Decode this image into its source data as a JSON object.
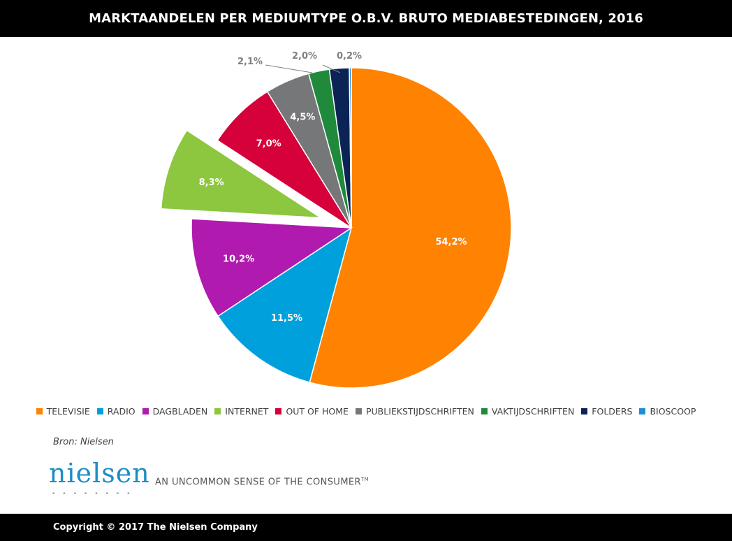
{
  "title": "MARKTAANDELEN PER MEDIUMTYPE O.B.V. BRUTO MEDIABESTEDINGEN, 2016",
  "chart_data": {
    "type": "pie",
    "title": "MARKTAANDELEN PER MEDIUMTYPE O.B.V. BRUTO MEDIABESTEDINGEN, 2016",
    "unit": "%",
    "legend_position": "bottom",
    "exploded": "INTERNET",
    "slices": [
      {
        "label": "TELEVISIE",
        "value": 54.2,
        "value_label": "54,2%",
        "color": "#FF8200"
      },
      {
        "label": "RADIO",
        "value": 11.5,
        "value_label": "11,5%",
        "color": "#00A0DC"
      },
      {
        "label": "DAGBLADEN",
        "value": 10.2,
        "value_label": "10,2%",
        "color": "#B01AAE"
      },
      {
        "label": "INTERNET",
        "value": 8.3,
        "value_label": "8,3%",
        "color": "#8DC63F"
      },
      {
        "label": "OUT OF HOME",
        "value": 7.0,
        "value_label": "7,0%",
        "color": "#D6003A"
      },
      {
        "label": "PUBLIEKSTIJDSCHRIFTEN",
        "value": 4.5,
        "value_label": "4,5%",
        "color": "#767779"
      },
      {
        "label": "VAKTIJDSCHRIFTEN",
        "value": 2.1,
        "value_label": "2,1%",
        "color": "#1F8A3C"
      },
      {
        "label": "FOLDERS",
        "value": 2.0,
        "value_label": "2,0%",
        "color": "#0C2356"
      },
      {
        "label": "BIOSCOOP",
        "value": 0.2,
        "value_label": "0,2%",
        "color": "#1E8FD6"
      }
    ]
  },
  "source": "Bron: Nielsen",
  "logo": {
    "wordmark": "nielsen",
    "dots": "••••••••"
  },
  "tagline": {
    "text": "AN UNCOMMON SENSE OF THE CONSUMER",
    "mark": "TM"
  },
  "footer": {
    "copyright": "Copyright © 2017 The Nielsen Company"
  }
}
